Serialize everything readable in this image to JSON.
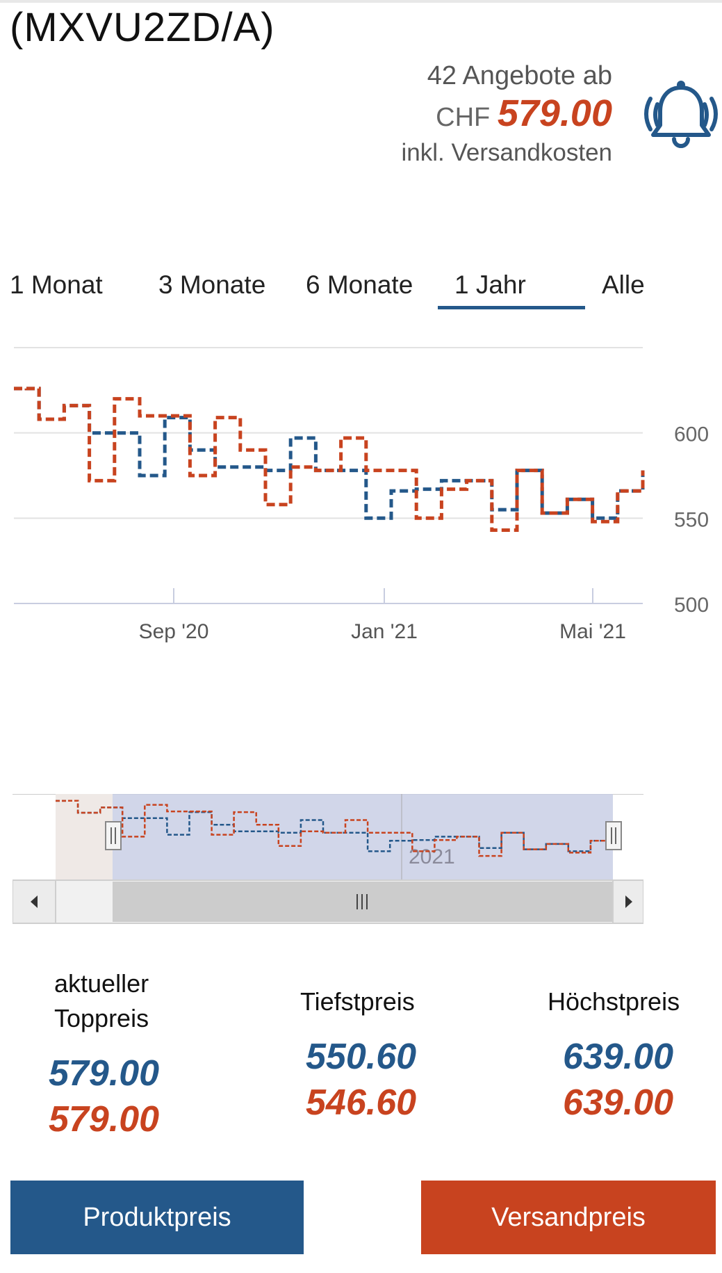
{
  "header": {
    "title": "(MXVU2ZD/A)",
    "offers_count": "42 Angebote ab",
    "currency": "CHF",
    "price": "579.00",
    "shipping_note": "inkl. Versandkosten",
    "bell_icon": "bell-alert-icon"
  },
  "tabs": [
    {
      "label": "1 Monat",
      "selected": false
    },
    {
      "label": "3 Monate",
      "selected": false
    },
    {
      "label": "6 Monate",
      "selected": false
    },
    {
      "label": "1 Jahr",
      "selected": true
    },
    {
      "label": "Alle",
      "selected": false
    }
  ],
  "chart_data": {
    "type": "line",
    "x_tick_labels": [
      "Sep '20",
      "Jan '21",
      "Mai '21"
    ],
    "y_tick_labels": [
      "600",
      "550",
      "500"
    ],
    "ylim": [
      500,
      650
    ],
    "grid": true,
    "navigator_label": "2021",
    "series": [
      {
        "name": "Produktpreis",
        "color": "#24588a",
        "dash": true,
        "values": [
          626,
          626,
          608,
          608,
          616,
          616,
          600,
          600,
          600,
          600,
          575,
          575,
          609,
          609,
          590,
          590,
          580,
          580,
          580,
          580,
          578,
          578,
          597,
          597,
          578,
          578,
          578,
          578,
          550,
          550,
          566,
          566,
          567,
          567,
          572,
          572,
          572,
          572,
          555,
          555,
          578,
          578,
          553,
          553,
          561,
          561,
          550,
          550,
          566,
          566,
          578
        ]
      },
      {
        "name": "Versandpreis",
        "color": "#c8431f",
        "dash": true,
        "values": [
          626,
          626,
          608,
          608,
          616,
          616,
          572,
          572,
          620,
          620,
          610,
          610,
          610,
          610,
          575,
          575,
          609,
          609,
          590,
          590,
          558,
          558,
          580,
          580,
          578,
          578,
          597,
          597,
          578,
          578,
          578,
          578,
          550,
          550,
          567,
          567,
          572,
          572,
          543,
          543,
          578,
          578,
          553,
          553,
          561,
          561,
          548,
          548,
          566,
          566,
          578
        ]
      }
    ]
  },
  "navigator": {
    "left_arrow_icon": "caret-left-icon",
    "right_arrow_icon": "caret-right-icon",
    "grip_icon": "grip-icon",
    "handle_icon": "handle-icon"
  },
  "stats": {
    "current_label_1": "aktueller",
    "current_label_2": "Toppreis",
    "current_blue": "579.00",
    "current_orange": "579.00",
    "low_label": "Tiefstpreis",
    "low_blue": "550.60",
    "low_orange": "546.60",
    "high_label": "Höchstpreis",
    "high_blue": "639.00",
    "high_orange": "639.00"
  },
  "buttons": {
    "product": "Produktpreis",
    "shipping": "Versandpreis"
  },
  "colors": {
    "blue": "#24588a",
    "orange": "#c8431f"
  }
}
